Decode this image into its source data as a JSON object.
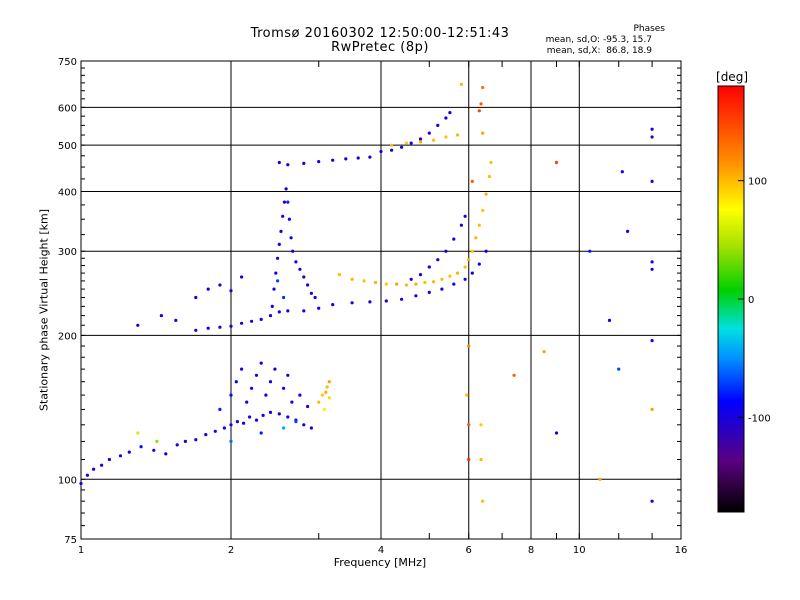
{
  "title_line1": "Tromsø 20160302 12:50:00-12:51:43",
  "title_line2": "RwPretec (8p)",
  "phases": {
    "heading": "Phases",
    "line_o": "mean, sd,O: -95.3, 15.7",
    "line_x": "mean, sd,X:  86.8, 18.9"
  },
  "colorbar": {
    "unit": "deg",
    "ticks": [
      {
        "value": 100,
        "label": "100"
      },
      {
        "value": 0,
        "label": "0"
      },
      {
        "value": -100,
        "label": "-100"
      }
    ],
    "range": [
      -180,
      180
    ]
  },
  "chart_data": {
    "type": "scatter",
    "xlabel": "Frequency [MHz]",
    "ylabel": "Stationary phase Virtual Height [km]",
    "x_scale": "log",
    "y_scale": "log",
    "xlim": [
      1,
      16
    ],
    "ylim": [
      75,
      750
    ],
    "xticks": [
      1,
      2,
      4,
      6,
      8,
      10,
      16
    ],
    "xtick_labels": [
      "1",
      "2",
      "4",
      "6",
      "8",
      "10",
      "16"
    ],
    "yticks": [
      75,
      100,
      200,
      300,
      400,
      500,
      600,
      750
    ],
    "ytick_labels": [
      "75",
      "100",
      "200",
      "300",
      "400",
      "500",
      "600",
      "750"
    ],
    "grid": true,
    "color_variable": "Phase [deg]",
    "series": [
      {
        "points": [
          [
            1.0,
            98,
            -100
          ],
          [
            1.03,
            102,
            -105
          ],
          [
            1.06,
            105,
            -102
          ],
          [
            1.1,
            107,
            -100
          ],
          [
            1.14,
            110,
            -98
          ],
          [
            1.2,
            112,
            -102
          ],
          [
            1.25,
            114,
            -96
          ],
          [
            1.32,
            117,
            -85
          ],
          [
            1.4,
            115,
            -98
          ],
          [
            1.48,
            113,
            -100
          ],
          [
            1.56,
            118,
            -103
          ],
          [
            1.62,
            120,
            -95
          ],
          [
            1.7,
            121,
            -100
          ],
          [
            1.78,
            124,
            -98
          ],
          [
            1.86,
            126,
            -101
          ],
          [
            1.94,
            128,
            -97
          ],
          [
            2.0,
            130,
            -100
          ],
          [
            2.06,
            132,
            -95
          ],
          [
            2.12,
            131,
            -90
          ],
          [
            2.18,
            135,
            -98
          ],
          [
            2.25,
            133,
            -100
          ],
          [
            2.32,
            136,
            -96
          ],
          [
            2.4,
            138,
            -99
          ],
          [
            2.5,
            137,
            -102
          ],
          [
            2.6,
            135,
            -98
          ],
          [
            2.7,
            133,
            -100
          ],
          [
            2.8,
            130,
            -97
          ],
          [
            2.9,
            128,
            -100
          ],
          [
            1.9,
            140,
            -80
          ],
          [
            2.0,
            150,
            -85
          ],
          [
            2.05,
            160,
            -90
          ],
          [
            2.1,
            170,
            -95
          ],
          [
            2.15,
            145,
            -100
          ],
          [
            2.2,
            155,
            -96
          ],
          [
            2.25,
            165,
            -98
          ],
          [
            2.3,
            175,
            -100
          ],
          [
            2.35,
            150,
            -92
          ],
          [
            2.4,
            160,
            -97
          ],
          [
            2.45,
            170,
            -99
          ],
          [
            2.55,
            155,
            -95
          ],
          [
            2.6,
            165,
            -100
          ],
          [
            2.65,
            145,
            -98
          ],
          [
            2.75,
            150,
            -94
          ],
          [
            2.85,
            142,
            -98
          ],
          [
            2.0,
            120,
            -60
          ],
          [
            2.3,
            125,
            -80
          ],
          [
            2.55,
            128,
            -40
          ],
          [
            2.7,
            132,
            -70
          ]
        ]
      },
      {
        "points": [
          [
            3.0,
            145,
            100
          ],
          [
            3.05,
            150,
            95
          ],
          [
            3.1,
            152,
            105
          ],
          [
            3.15,
            148,
            90
          ],
          [
            3.08,
            140,
            70
          ],
          [
            3.12,
            156,
            100
          ],
          [
            1.3,
            125,
            60
          ],
          [
            1.42,
            120,
            40
          ],
          [
            3.15,
            160,
            110
          ]
        ]
      },
      {
        "points": [
          [
            1.7,
            205,
            -100
          ],
          [
            1.8,
            207,
            -98
          ],
          [
            1.9,
            208,
            -102
          ],
          [
            2.0,
            209,
            -100
          ],
          [
            2.1,
            212,
            -97
          ],
          [
            2.2,
            214,
            -101
          ],
          [
            2.3,
            216,
            -99
          ],
          [
            2.4,
            220,
            -100
          ],
          [
            2.5,
            224,
            -98
          ],
          [
            2.6,
            225,
            -102
          ],
          [
            2.8,
            225,
            -100
          ],
          [
            3.0,
            228,
            -97
          ],
          [
            3.2,
            232,
            -100
          ],
          [
            3.5,
            234,
            -99
          ],
          [
            3.8,
            235,
            -101
          ],
          [
            4.1,
            236,
            -98
          ],
          [
            4.4,
            238,
            -100
          ],
          [
            4.7,
            242,
            -97
          ],
          [
            5.0,
            246,
            -100
          ],
          [
            5.3,
            250,
            -99
          ],
          [
            5.6,
            256,
            -101
          ],
          [
            5.9,
            262,
            -98
          ],
          [
            6.1,
            270,
            -100
          ],
          [
            6.3,
            282,
            -99
          ],
          [
            6.5,
            300,
            -97
          ]
        ]
      },
      {
        "points": [
          [
            2.42,
            230,
            -95
          ],
          [
            2.44,
            250,
            -100
          ],
          [
            2.46,
            270,
            -98
          ],
          [
            2.48,
            290,
            -102
          ],
          [
            2.5,
            310,
            -97
          ],
          [
            2.52,
            330,
            -100
          ],
          [
            2.54,
            355,
            -96
          ],
          [
            2.56,
            380,
            -99
          ],
          [
            2.58,
            405,
            -101
          ],
          [
            2.6,
            380,
            -80
          ],
          [
            2.62,
            350,
            -85
          ],
          [
            2.64,
            320,
            -90
          ],
          [
            2.66,
            300,
            -100
          ],
          [
            2.7,
            285,
            -98
          ],
          [
            2.75,
            275,
            -96
          ],
          [
            2.8,
            265,
            -100
          ],
          [
            2.85,
            255,
            -97
          ],
          [
            2.9,
            245,
            -99
          ],
          [
            2.95,
            240,
            -95
          ],
          [
            2.48,
            260,
            -70
          ],
          [
            2.55,
            240,
            -75
          ]
        ]
      },
      {
        "points": [
          [
            3.3,
            268,
            100
          ],
          [
            3.5,
            262,
            105
          ],
          [
            3.7,
            260,
            98
          ],
          [
            3.9,
            258,
            102
          ],
          [
            4.1,
            256,
            95
          ],
          [
            4.3,
            256,
            110
          ],
          [
            4.5,
            255,
            100
          ],
          [
            4.7,
            256,
            105
          ],
          [
            4.9,
            258,
            98
          ],
          [
            5.1,
            259,
            102
          ],
          [
            5.3,
            262,
            100
          ],
          [
            5.5,
            266,
            97
          ],
          [
            5.7,
            270,
            103
          ],
          [
            5.9,
            278,
            100
          ],
          [
            6.0,
            288,
            105
          ],
          [
            6.1,
            300,
            98
          ],
          [
            6.2,
            320,
            102
          ],
          [
            6.3,
            340,
            100
          ],
          [
            6.4,
            365,
            96
          ],
          [
            6.5,
            395,
            104
          ],
          [
            6.6,
            430,
            100
          ],
          [
            6.65,
            460,
            98
          ]
        ]
      },
      {
        "points": [
          [
            4.6,
            262,
            -100
          ],
          [
            4.8,
            268,
            -98
          ],
          [
            5.0,
            278,
            -101
          ],
          [
            5.2,
            288,
            -97
          ],
          [
            5.4,
            300,
            -100
          ],
          [
            5.6,
            318,
            -99
          ],
          [
            5.8,
            340,
            -102
          ],
          [
            5.9,
            355,
            -98
          ]
        ]
      },
      {
        "points": [
          [
            2.5,
            460,
            -100
          ],
          [
            2.6,
            455,
            -98
          ],
          [
            2.8,
            458,
            -101
          ],
          [
            3.0,
            462,
            -97
          ],
          [
            3.2,
            465,
            -100
          ],
          [
            3.4,
            468,
            -99
          ],
          [
            3.6,
            470,
            -102
          ],
          [
            3.8,
            472,
            -98
          ],
          [
            4.0,
            485,
            -100
          ],
          [
            4.2,
            488,
            -97
          ],
          [
            4.4,
            495,
            -100
          ],
          [
            4.6,
            505,
            -99
          ],
          [
            4.8,
            515,
            -101
          ],
          [
            5.0,
            530,
            -98
          ],
          [
            5.2,
            550,
            -100
          ],
          [
            5.4,
            570,
            -97
          ],
          [
            5.5,
            585,
            -100
          ]
        ]
      },
      {
        "points": [
          [
            4.2,
            500,
            100
          ],
          [
            4.5,
            505,
            95
          ],
          [
            4.8,
            508,
            105
          ],
          [
            5.1,
            512,
            100
          ],
          [
            5.4,
            520,
            98
          ],
          [
            5.7,
            525,
            102
          ]
        ]
      },
      {
        "points": [
          [
            1.3,
            210,
            -100
          ],
          [
            1.45,
            220,
            -98
          ],
          [
            1.55,
            215,
            -102
          ],
          [
            1.7,
            240,
            -100
          ],
          [
            1.8,
            250,
            -97
          ],
          [
            1.9,
            255,
            -101
          ],
          [
            2.0,
            248,
            -99
          ],
          [
            2.1,
            265,
            -100
          ]
        ]
      },
      {
        "points": [
          [
            5.95,
            150,
            100
          ],
          [
            6.0,
            130,
            140
          ],
          [
            6.0,
            110,
            160
          ],
          [
            6.0,
            190,
            120
          ],
          [
            6.1,
            420,
            140
          ],
          [
            6.35,
            110,
            100
          ],
          [
            6.35,
            130,
            95
          ],
          [
            6.4,
            90,
            100
          ],
          [
            6.35,
            610,
            140
          ],
          [
            6.4,
            660,
            130
          ],
          [
            6.3,
            590,
            150
          ],
          [
            6.4,
            530,
            110
          ],
          [
            5.8,
            670,
            100
          ],
          [
            7.4,
            165,
            140
          ],
          [
            9.0,
            460,
            150
          ],
          [
            11.0,
            100,
            110
          ]
        ]
      },
      {
        "points": [
          [
            8.5,
            185,
            110
          ],
          [
            10.5,
            300,
            -80
          ],
          [
            12.0,
            170,
            -70
          ],
          [
            12.5,
            330,
            -100
          ],
          [
            14.0,
            540,
            -100
          ],
          [
            14.0,
            520,
            -110
          ],
          [
            14.0,
            420,
            -100
          ],
          [
            14.0,
            285,
            -100
          ],
          [
            14.0,
            275,
            -100
          ],
          [
            14.0,
            195,
            -100
          ],
          [
            14.0,
            140,
            110
          ],
          [
            14.0,
            90,
            -100
          ],
          [
            9.0,
            125,
            -100
          ],
          [
            11.5,
            215,
            -100
          ],
          [
            12.2,
            440,
            -95
          ]
        ]
      }
    ]
  }
}
